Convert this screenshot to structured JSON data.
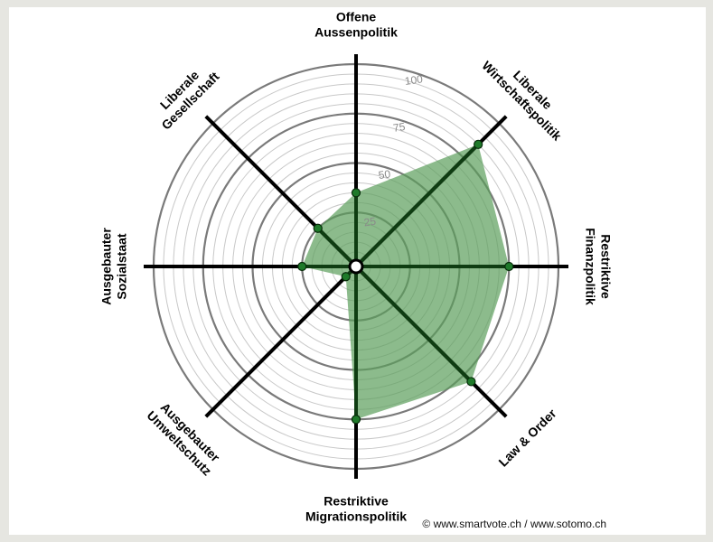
{
  "chart_data": {
    "type": "radar",
    "rmax": 100,
    "ticks": [
      25,
      50,
      75,
      100
    ],
    "minor_step": 5,
    "axes": [
      {
        "lines": [
          "Offene",
          "Aussenpolitik"
        ],
        "value": 35
      },
      {
        "lines": [
          "Liberale",
          "Wirtschaftspolitik"
        ],
        "value": 85
      },
      {
        "lines": [
          "Restriktive",
          "Finanzpolitik"
        ],
        "value": 75
      },
      {
        "lines": [
          "Law & Order"
        ],
        "value": 80
      },
      {
        "lines": [
          "Restriktive",
          "Migrationspolitik"
        ],
        "value": 75
      },
      {
        "lines": [
          "Ausgebauter",
          "Umweltschutz"
        ],
        "value": 5
      },
      {
        "lines": [
          "Ausgebauter",
          "Sozialstaat"
        ],
        "value": 25
      },
      {
        "lines": [
          "Liberale",
          "Gesellschaft"
        ],
        "value": 25
      }
    ],
    "colors": {
      "fill": "#5b9e5b",
      "fill_opacity": 0.7,
      "marker": "#1f7a2a",
      "spoke": "#000000",
      "ring_major": "#7a7a7a",
      "ring_minor": "#c8c8c8"
    }
  },
  "copyright": "© www.smartvote.ch / www.sotomo.ch"
}
